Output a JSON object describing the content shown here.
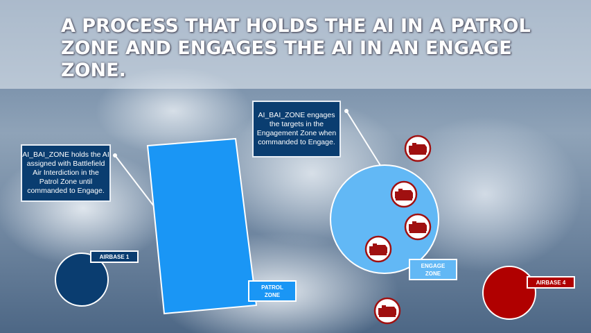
{
  "title": "A PROCESS THAT HOLDS THE AI IN A PATROL ZONE AND ENGAGES THE AI IN AN ENGAGE ZONE.",
  "callouts": {
    "patrol": "AI_BAI_ZONE holds the AI assigned with Battlefield Air Interdiction in the Patrol Zone until commanded to Engage.",
    "engage": "AI_BAI_ZONE engages the targets in the Engagement Zone when commanded to Engage."
  },
  "labels": {
    "airbase1": "AIRBASE 1",
    "patrol_zone": "PATROL ZONE",
    "engage_zone": "ENGAGE ZONE",
    "airbase4": "AIRBASE 4"
  },
  "colors": {
    "blue_dark": "#0a3d70",
    "patrol": "#1a96f5",
    "engage": "#62b8f5",
    "red": "#b00000"
  },
  "icons": [
    "tank-icon",
    "tank-icon",
    "tank-icon",
    "tank-icon",
    "tank-icon"
  ]
}
